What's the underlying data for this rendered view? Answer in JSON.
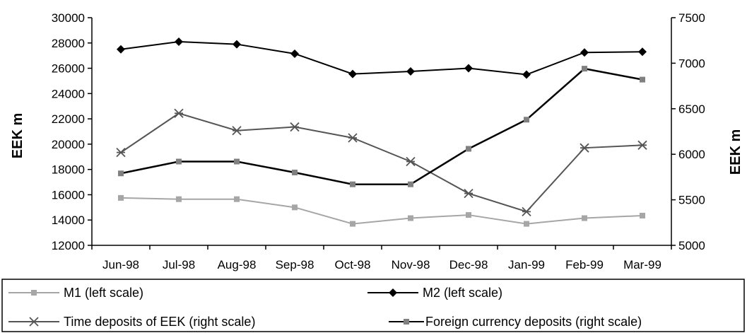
{
  "chart_data": {
    "type": "line",
    "categories": [
      "Jun-98",
      "Jul-98",
      "Aug-98",
      "Sep-98",
      "Oct-98",
      "Nov-98",
      "Dec-98",
      "Jan-99",
      "Feb-99",
      "Mar-99"
    ],
    "left_axis": {
      "label": "EEK m",
      "range": [
        12000,
        30000
      ],
      "ticks": [
        "12000",
        "14000",
        "16000",
        "18000",
        "20000",
        "22000",
        "24000",
        "26000",
        "28000",
        "30000"
      ]
    },
    "right_axis": {
      "label": "EEK m",
      "range": [
        5000,
        7500
      ],
      "ticks": [
        "5000",
        "5500",
        "6000",
        "6500",
        "7000",
        "7500"
      ]
    },
    "series": [
      {
        "name": "M1",
        "legend": "M1 (left scale)",
        "axis": "left",
        "color": "#a6a6a6",
        "marker": "square",
        "values": [
          15750,
          15650,
          15650,
          15000,
          13700,
          14150,
          14400,
          13700,
          14150,
          14350
        ]
      },
      {
        "name": "M2",
        "legend": "M2 (left scale)",
        "axis": "left",
        "color": "#000000",
        "marker": "diamond",
        "values": [
          27500,
          28100,
          27900,
          27150,
          25550,
          25750,
          26000,
          25500,
          27250,
          27300
        ]
      },
      {
        "name": "Time deposits of EEK",
        "legend": "Time deposits of EEK (right scale)",
        "axis": "right",
        "color": "#555555",
        "marker": "star",
        "values": [
          6020,
          6450,
          6260,
          6300,
          6180,
          5920,
          5570,
          5370,
          6070,
          6100
        ]
      },
      {
        "name": "Foreign currency deposits",
        "legend": "Foreign currency deposits (right scale)",
        "axis": "right",
        "color": "#000000",
        "marker": "square-gray",
        "values": [
          5790,
          5920,
          5920,
          5800,
          5670,
          5670,
          6060,
          6380,
          6940,
          6820
        ]
      }
    ],
    "legend_position": "bottom",
    "grid": false
  }
}
